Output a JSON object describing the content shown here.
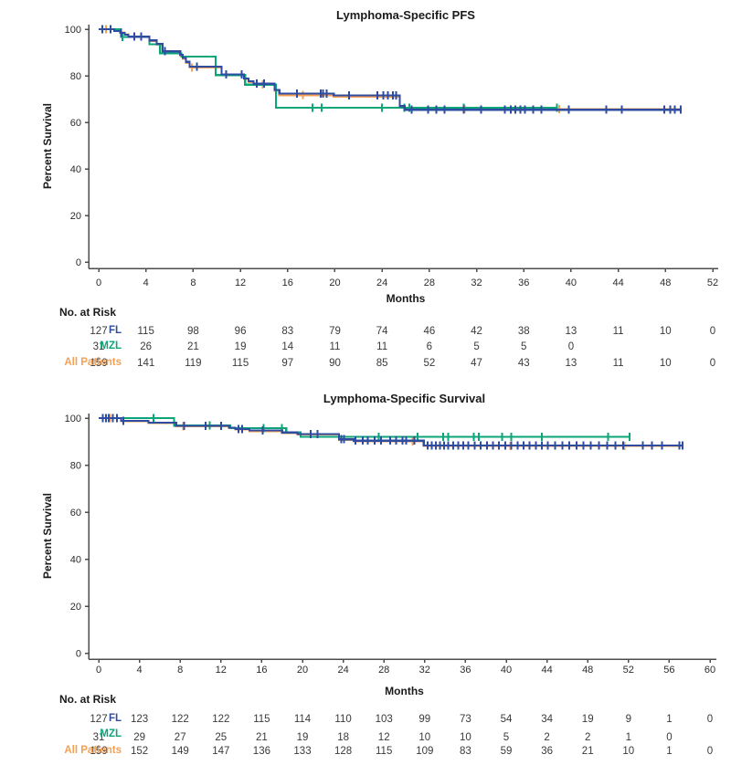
{
  "page": {
    "background": "#FFFFFF"
  },
  "colors": {
    "fl": "#2F4DA0",
    "mzl": "#0BA579",
    "all_patients": "#F5A052",
    "axis": "#4D4D4D",
    "text": "#1A1A1A"
  },
  "chart_data": [
    {
      "type": "line",
      "km_style": "step",
      "title": "Lymphoma-Specific PFS",
      "xlabel": "Months",
      "ylabel": "Percent Survival",
      "xlim": [
        0,
        52
      ],
      "ylim": [
        0,
        100
      ],
      "xticks": [
        0,
        4,
        8,
        12,
        16,
        20,
        24,
        28,
        32,
        36,
        40,
        44,
        48,
        52
      ],
      "yticks": [
        0,
        20,
        40,
        60,
        80,
        100
      ],
      "grid": false,
      "legend_position": "none",
      "series": [
        {
          "name": "FL",
          "color": "#2F4DA0",
          "points": [
            [
              0,
              100
            ],
            [
              1.3,
              99.2
            ],
            [
              1.8,
              98.4
            ],
            [
              2.2,
              97.6
            ],
            [
              2.5,
              96.8
            ],
            [
              4.3,
              95.2
            ],
            [
              4.9,
              93.7
            ],
            [
              5.4,
              90.5
            ],
            [
              6.9,
              89
            ],
            [
              7.1,
              87.6
            ],
            [
              7.4,
              86
            ],
            [
              7.7,
              83.9
            ],
            [
              10.4,
              80.6
            ],
            [
              12.3,
              78.8
            ],
            [
              12.7,
              77.6
            ],
            [
              13.1,
              76.6
            ],
            [
              14.9,
              73.9
            ],
            [
              15.3,
              72.4
            ],
            [
              19.9,
              71.6
            ],
            [
              25.5,
              67
            ],
            [
              25.9,
              65.4
            ],
            [
              49.3,
              65.4
            ]
          ],
          "censor_months": [
            0.3,
            1.0,
            1.9,
            3.0,
            3.6,
            5.6,
            8.3,
            10.8,
            12.1,
            13.4,
            14.0,
            16.8,
            18.8,
            19.0,
            19.3,
            21.2,
            23.6,
            24.1,
            24.5,
            24.9,
            25.2,
            26.5,
            27.9,
            28.6,
            29.3,
            30.9,
            32.4,
            34.4,
            34.9,
            35.3,
            35.7,
            36.1,
            36.8,
            37.5,
            39.8,
            43.0,
            44.3,
            47.9,
            48.4,
            48.8,
            49.3
          ]
        },
        {
          "name": "MZL",
          "color": "#0BA579",
          "points": [
            [
              0,
              100
            ],
            [
              1.9,
              96.7
            ],
            [
              4.3,
              93.5
            ],
            [
              5.2,
              89.7
            ],
            [
              7.0,
              88.3
            ],
            [
              9.9,
              80.3
            ],
            [
              12.4,
              76.2
            ],
            [
              15.0,
              66.3
            ],
            [
              38.8,
              66.3
            ]
          ],
          "censor_months": [
            2.0,
            18.1,
            18.9,
            24.0,
            25.9,
            26.3,
            30.9,
            38.8
          ]
        },
        {
          "name": "All Patients",
          "color": "#F5A052",
          "points": [
            [
              0,
              100
            ],
            [
              1.3,
              99.3
            ],
            [
              1.8,
              98.6
            ],
            [
              2.2,
              97.8
            ],
            [
              2.5,
              96.9
            ],
            [
              4.3,
              94.9
            ],
            [
              4.9,
              93.4
            ],
            [
              5.4,
              90.2
            ],
            [
              6.9,
              88.6
            ],
            [
              7.1,
              87.2
            ],
            [
              7.4,
              85.6
            ],
            [
              7.7,
              83.5
            ],
            [
              10.4,
              80.4
            ],
            [
              12.3,
              78.6
            ],
            [
              12.7,
              77.3
            ],
            [
              13.1,
              76.3
            ],
            [
              14.9,
              73.5
            ],
            [
              15.3,
              71.7
            ],
            [
              19.9,
              71.0
            ],
            [
              25.5,
              66.5
            ],
            [
              25.9,
              65.7
            ],
            [
              49.3,
              65.7
            ]
          ],
          "censor_months": [
            0.6,
            7.9,
            13.9,
            17.3,
            31.0,
            39.0
          ]
        }
      ],
      "risk_table": {
        "header": "No. at Risk",
        "months": [
          0,
          4,
          8,
          12,
          16,
          20,
          24,
          28,
          32,
          36,
          40,
          44,
          48,
          52
        ],
        "rows": [
          {
            "name": "FL",
            "color": "#2F4DA0",
            "values": [
              127,
              115,
              98,
              96,
              83,
              79,
              74,
              46,
              42,
              38,
              13,
              11,
              10,
              0
            ]
          },
          {
            "name": "MZL",
            "color": "#0BA579",
            "values": [
              31,
              26,
              21,
              19,
              14,
              11,
              11,
              6,
              5,
              5,
              0,
              "",
              "",
              ""
            ]
          },
          {
            "name": "All Patients",
            "color": "#F5A052",
            "values": [
              159,
              141,
              119,
              115,
              97,
              90,
              85,
              52,
              47,
              43,
              13,
              11,
              10,
              0
            ]
          }
        ]
      }
    },
    {
      "type": "line",
      "km_style": "step",
      "title": "Lymphoma-Specific Survival",
      "xlabel": "Months",
      "ylabel": "Percent Survival",
      "xlim": [
        0,
        60
      ],
      "ylim": [
        0,
        100
      ],
      "xticks": [
        0,
        4,
        8,
        12,
        16,
        20,
        24,
        28,
        32,
        36,
        40,
        44,
        48,
        52,
        56,
        60
      ],
      "yticks": [
        0,
        20,
        40,
        60,
        80,
        100
      ],
      "grid": false,
      "legend_position": "none",
      "series": [
        {
          "name": "FL",
          "color": "#2F4DA0",
          "points": [
            [
              0,
              100
            ],
            [
              2.2,
              98.8
            ],
            [
              4.9,
              98.1
            ],
            [
              7.6,
              96.7
            ],
            [
              12.8,
              95.9
            ],
            [
              13.4,
              95.3
            ],
            [
              14.8,
              94.7
            ],
            [
              18.0,
              93.9
            ],
            [
              19.5,
              93.3
            ],
            [
              23.6,
              91.0
            ],
            [
              25.0,
              90.4
            ],
            [
              31.9,
              88.4
            ],
            [
              57.3,
              88.4
            ]
          ],
          "censor_months": [
            0.4,
            0.7,
            1.0,
            1.4,
            1.8,
            2.4,
            8.4,
            10.5,
            12.0,
            13.7,
            14.1,
            16.1,
            20.8,
            21.5,
            23.8,
            24.1,
            25.2,
            25.9,
            26.4,
            27.1,
            27.7,
            28.6,
            29.2,
            29.8,
            30.2,
            31.0,
            32.3,
            32.7,
            33.1,
            33.5,
            33.9,
            34.3,
            34.8,
            35.3,
            35.8,
            36.3,
            36.9,
            37.5,
            38.1,
            38.7,
            39.3,
            39.9,
            40.5,
            41.1,
            41.7,
            42.3,
            42.9,
            43.5,
            44.1,
            44.8,
            45.5,
            46.2,
            46.9,
            47.6,
            48.3,
            49.1,
            49.9,
            50.7,
            51.5,
            53.4,
            54.3,
            55.3,
            57.0,
            57.3
          ],
          "end_censor": true
        },
        {
          "name": "MZL",
          "color": "#0BA579",
          "points": [
            [
              0,
              100
            ],
            [
              7.4,
              96.8
            ],
            [
              12.9,
              95.8
            ],
            [
              18.4,
              94.0
            ],
            [
              19.8,
              92.0
            ],
            [
              52.1,
              92.0
            ]
          ],
          "censor_months": [
            5.4,
            10.9,
            16.2,
            18.0,
            27.5,
            31.3,
            33.8,
            34.3,
            36.8,
            37.3,
            39.6,
            40.5,
            43.5,
            50.0,
            52.1
          ]
        },
        {
          "name": "All Patients",
          "color": "#F5A052",
          "points": [
            [
              0,
              100
            ],
            [
              2.2,
              98.6
            ],
            [
              4.9,
              97.9
            ],
            [
              7.6,
              96.5
            ],
            [
              12.8,
              95.7
            ],
            [
              13.4,
              95.1
            ],
            [
              14.8,
              94.4
            ],
            [
              18.0,
              93.6
            ],
            [
              19.5,
              93.0
            ],
            [
              23.6,
              90.7
            ],
            [
              25.0,
              90.1
            ],
            [
              31.9,
              88.1
            ],
            [
              57.3,
              88.1
            ]
          ],
          "censor_months": [
            1.1,
            8.3,
            30.8,
            40.4,
            51.6
          ]
        }
      ],
      "risk_table": {
        "header": "No. at Risk",
        "months": [
          0,
          4,
          8,
          12,
          16,
          20,
          24,
          28,
          32,
          36,
          40,
          44,
          48,
          52,
          56,
          60
        ],
        "rows": [
          {
            "name": "FL",
            "color": "#2F4DA0",
            "values": [
              127,
              123,
              122,
              122,
              115,
              114,
              110,
              103,
              99,
              73,
              54,
              34,
              19,
              9,
              1,
              0
            ]
          },
          {
            "name": "MZL",
            "color": "#0BA579",
            "values": [
              31,
              29,
              27,
              25,
              21,
              19,
              18,
              12,
              10,
              10,
              5,
              2,
              2,
              1,
              0,
              ""
            ]
          },
          {
            "name": "All Patients",
            "color": "#F5A052",
            "values": [
              159,
              152,
              149,
              147,
              136,
              133,
              128,
              115,
              109,
              83,
              59,
              36,
              21,
              10,
              1,
              0
            ]
          }
        ]
      }
    }
  ]
}
